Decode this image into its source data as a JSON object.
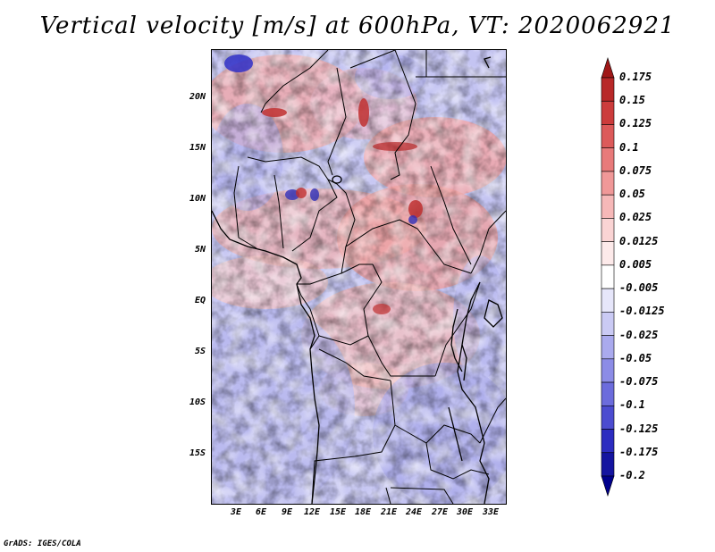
{
  "title": "Vertical velocity [m/s] at 600hPa, VT: 2020062921",
  "credit": "GrADS: IGES/COLA",
  "lat_labels": [
    "20N",
    "15N",
    "10N",
    "5N",
    "EQ",
    "5S",
    "10S",
    "15S"
  ],
  "lon_labels": [
    "3E",
    "6E",
    "9E",
    "12E",
    "15E",
    "18E",
    "21E",
    "24E",
    "27E",
    "30E",
    "33E"
  ],
  "colorbar": {
    "labels": [
      "0.175",
      "0.15",
      "0.125",
      "0.1",
      "0.075",
      "0.05",
      "0.025",
      "0.0125",
      "0.005",
      "-0.005",
      "-0.0125",
      "-0.025",
      "-0.05",
      "-0.075",
      "-0.1",
      "-0.125",
      "-0.175",
      "-0.2"
    ],
    "colors": [
      "#a01818",
      "#b82828",
      "#cc3c3c",
      "#dc5a5a",
      "#e87a7a",
      "#f09898",
      "#f6b8b8",
      "#fad4d4",
      "#fdeaea",
      "#ffffff",
      "#e6e6fa",
      "#cacaf4",
      "#aaaaee",
      "#8c8ce6",
      "#6c6cdc",
      "#4c4cd0",
      "#2c2cc0",
      "#1414a0",
      "#00008c"
    ]
  }
}
